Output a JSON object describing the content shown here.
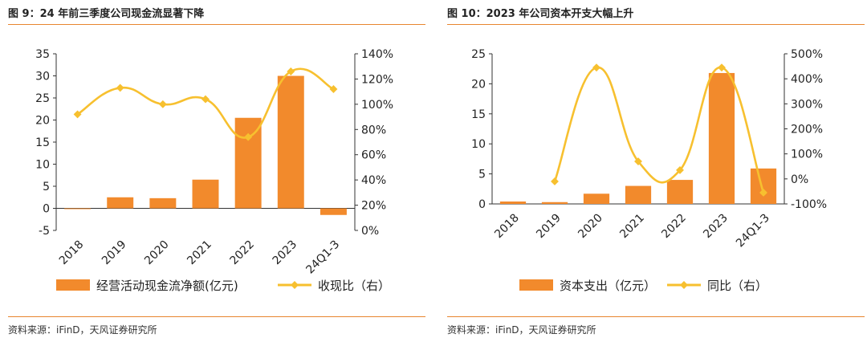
{
  "panels": [
    {
      "title": "图 9：24 年前三季度公司现金流显著下降",
      "source": "资料来源：iFinD，天风证券研究所"
    },
    {
      "title": "图 10：2023 年公司资本开支大幅上升",
      "source": "资料来源：iFinD，天风证券研究所"
    }
  ],
  "chart_data": [
    {
      "type": "bar",
      "title": "图 9：24 年前三季度公司现金流显著下降",
      "categories": [
        "2018",
        "2019",
        "2020",
        "2021",
        "2022",
        "2023",
        "24Q1-3"
      ],
      "series": [
        {
          "name": "经营活动现金流净额(亿元)",
          "type": "bar",
          "axis": "left",
          "values": [
            0,
            2.5,
            2.3,
            6.5,
            20.5,
            30,
            -1.5
          ]
        },
        {
          "name": "收现比（右）",
          "type": "line",
          "axis": "right",
          "values": [
            92,
            113,
            100,
            104,
            74,
            126,
            112
          ]
        }
      ],
      "y_left": {
        "min": -5,
        "max": 35,
        "ticks": [
          "-5",
          "0",
          "5",
          "10",
          "15",
          "20",
          "25",
          "30",
          "35"
        ]
      },
      "y_right": {
        "min": 0,
        "max": 140,
        "ticks": [
          "0%",
          "20%",
          "40%",
          "60%",
          "80%",
          "100%",
          "120%",
          "140%"
        ]
      },
      "colors": {
        "bar": "#f28a2c",
        "line": "#f7c02f"
      },
      "legend": "bottom",
      "grid": false
    },
    {
      "type": "bar",
      "title": "图 10：2023 年公司资本开支大幅上升",
      "categories": [
        "2018",
        "2019",
        "2020",
        "2021",
        "2022",
        "2023",
        "24Q1-3"
      ],
      "series": [
        {
          "name": "资本支出（亿元）",
          "type": "bar",
          "axis": "left",
          "values": [
            0.4,
            0.3,
            1.7,
            3.0,
            4.0,
            21.8,
            5.9
          ]
        },
        {
          "name": "同比（右）",
          "type": "line",
          "axis": "right",
          "values": [
            null,
            -10,
            445,
            70,
            35,
            445,
            -55
          ]
        }
      ],
      "y_left": {
        "min": 0,
        "max": 25,
        "ticks": [
          "0",
          "5",
          "10",
          "15",
          "20",
          "25"
        ]
      },
      "y_right": {
        "min": -100,
        "max": 500,
        "ticks": [
          "-100%",
          "0%",
          "100%",
          "200%",
          "300%",
          "400%",
          "500%"
        ]
      },
      "colors": {
        "bar": "#f28a2c",
        "line": "#f7c02f"
      },
      "legend": "bottom",
      "grid": false
    }
  ]
}
